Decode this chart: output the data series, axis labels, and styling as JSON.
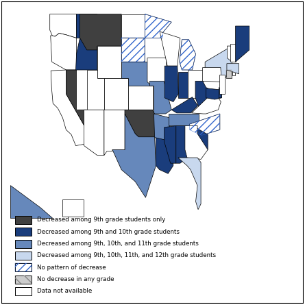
{
  "legend_items": [
    {
      "label": "Decreased among 9th grade students only",
      "color": "#404040",
      "hatch": null,
      "hatch_color": null
    },
    {
      "label": "Decreased among 9th and 10th grade students",
      "color": "#1a3d7c",
      "hatch": null,
      "hatch_color": null
    },
    {
      "label": "Decreased among 9th, 10th, and 11th grade students",
      "color": "#6688bb",
      "hatch": null,
      "hatch_color": null
    },
    {
      "label": "Decreased among 9th, 10th, 11th, and 12th grade students",
      "color": "#c8d8ee",
      "hatch": null,
      "hatch_color": null
    },
    {
      "label": "No pattern of decrease",
      "color": "#ffffff",
      "hatch": "///",
      "hatch_color": "#3366cc"
    },
    {
      "label": "No decrease in any grade",
      "color": "#cccccc",
      "hatch": "\\\\",
      "hatch_color": "#888888"
    },
    {
      "label": "Data not available",
      "color": "#ffffff",
      "hatch": null,
      "hatch_color": null
    }
  ],
  "state_categories": {
    "WA": "data_not_available",
    "OR": "data_not_available",
    "CA": "data_not_available",
    "NV": "9th_only",
    "ID": "9th_10th",
    "MT": "9th_only",
    "WY": "data_not_available",
    "UT": "data_not_available",
    "CO": "data_not_available",
    "AZ": "data_not_available",
    "NM": "data_not_available",
    "ND": "data_not_available",
    "SD": "no_pattern",
    "NE": "9th_10th_11th",
    "KS": "data_not_available",
    "MN": "no_pattern",
    "IA": "data_not_available",
    "MO": "9th_10th_11th",
    "WI": "data_not_available",
    "MI": "no_pattern",
    "IL": "9th_10th",
    "IN": "9th_10th",
    "OH": "data_not_available",
    "OK": "9th_only",
    "TX": "9th_10th_11th",
    "AR": "9th_10th_11th",
    "LA": "9th_10th",
    "MS": "9th_10th",
    "AL": "9th_10th",
    "TN": "9th_10th_11th",
    "KY": "9th_10th",
    "WV": "9th_10th",
    "VA": "data_not_available",
    "NC": "no_pattern",
    "SC": "9th_10th",
    "GA": "data_not_available",
    "FL": "all_grades",
    "NY": "all_grades",
    "PA": "data_not_available",
    "MD": "9th_10th",
    "DE": "9th_10th",
    "NJ": "data_not_available",
    "CT": "no_decrease",
    "RI": "data_not_available",
    "MA": "all_grades",
    "VT": "data_not_available",
    "NH": "data_not_available",
    "ME": "9th_10th",
    "AK": "9th_10th_11th",
    "HI": "data_not_available"
  },
  "category_styles": {
    "9th_only": {
      "color": "#404040",
      "hatch": null,
      "hatch_color": "black"
    },
    "9th_10th": {
      "color": "#1a3d7c",
      "hatch": null,
      "hatch_color": "black"
    },
    "9th_10th_11th": {
      "color": "#6688bb",
      "hatch": null,
      "hatch_color": "black"
    },
    "all_grades": {
      "color": "#c8d8ee",
      "hatch": null,
      "hatch_color": "black"
    },
    "no_pattern": {
      "color": "#ffffff",
      "hatch": "///",
      "hatch_color": "#3366cc"
    },
    "no_decrease": {
      "color": "#cccccc",
      "hatch": "\\\\",
      "hatch_color": "#888888"
    },
    "data_not_available": {
      "color": "#ffffff",
      "hatch": null,
      "hatch_color": "black"
    }
  }
}
